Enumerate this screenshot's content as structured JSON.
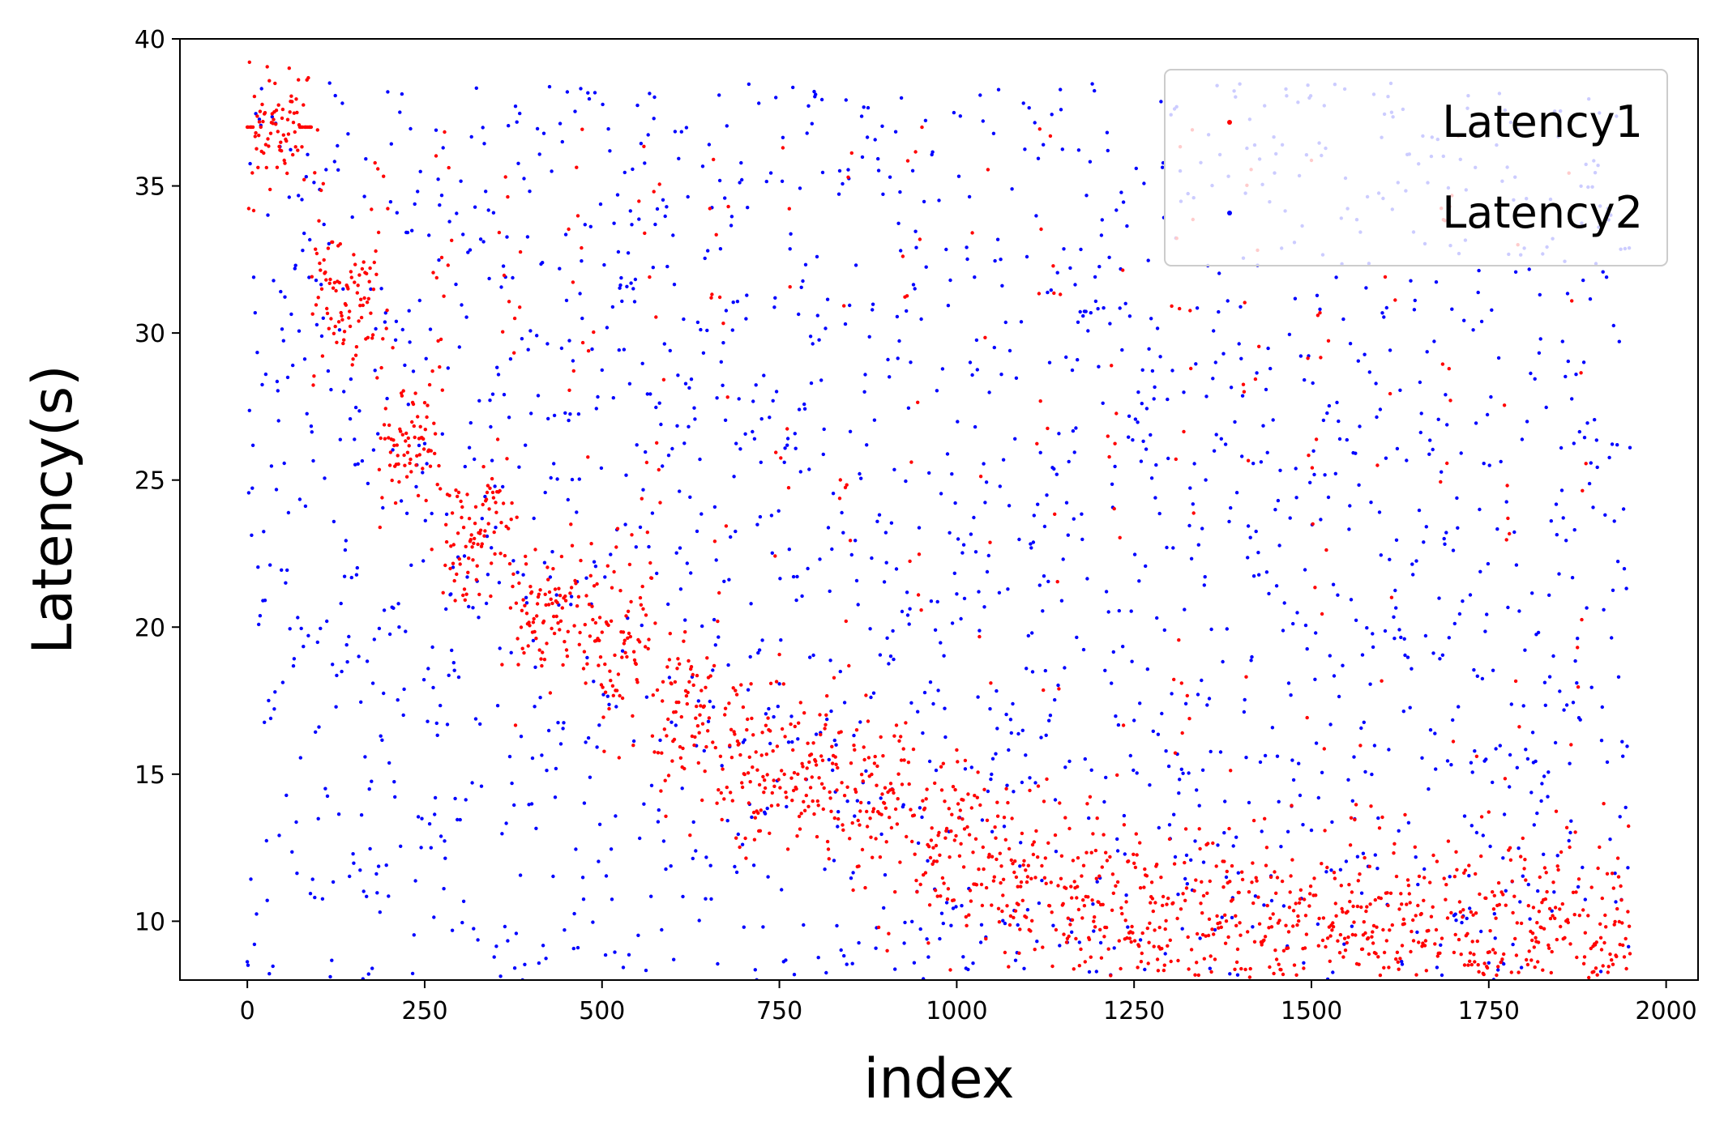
{
  "chart_data": {
    "type": "scatter",
    "title": "",
    "xlabel": "index",
    "ylabel": "Latency(s)",
    "xlim": [
      -95,
      2045
    ],
    "ylim": [
      8,
      40
    ],
    "xticks": [
      0,
      250,
      500,
      750,
      1000,
      1250,
      1500,
      1750,
      2000
    ],
    "yticks": [
      10,
      15,
      20,
      25,
      30,
      35,
      40
    ],
    "xtick_labels": [
      "0",
      "250",
      "500",
      "750",
      "1000",
      "1250",
      "1500",
      "1750",
      "2000"
    ],
    "ytick_labels": [
      "10",
      "15",
      "20",
      "25",
      "30",
      "35",
      "40"
    ],
    "grid": false,
    "legend_position": "top-right",
    "n_points_per_series": 1950,
    "series": [
      {
        "name": "Latency1",
        "color": "#ff0000",
        "description": "step-decreasing clusters: dense cluster every ~60 indices, level drops from ~37 s at start to ~10 s near the end",
        "cluster_centers": [
          [
            40,
            37
          ],
          [
            140,
            31
          ],
          [
            230,
            26.5
          ],
          [
            320,
            23
          ],
          [
            420,
            20.5
          ],
          [
            520,
            19.5
          ],
          [
            620,
            17
          ],
          [
            710,
            15.5
          ],
          [
            800,
            15
          ],
          [
            890,
            14
          ],
          [
            990,
            12.8
          ],
          [
            1080,
            11.5
          ],
          [
            1180,
            10.8
          ],
          [
            1270,
            10.2
          ],
          [
            1370,
            10
          ],
          [
            1460,
            9.8
          ],
          [
            1560,
            9.7
          ],
          [
            1650,
            9.6
          ],
          [
            1740,
            9.5
          ],
          [
            1830,
            9.5
          ],
          [
            1920,
            9.4
          ]
        ]
      },
      {
        "name": "Latency2",
        "color": "#0000ff",
        "description": "scattered points roughly uniform across index 0–1950 with latency spread between ~8 s and ~38 s"
      }
    ]
  }
}
